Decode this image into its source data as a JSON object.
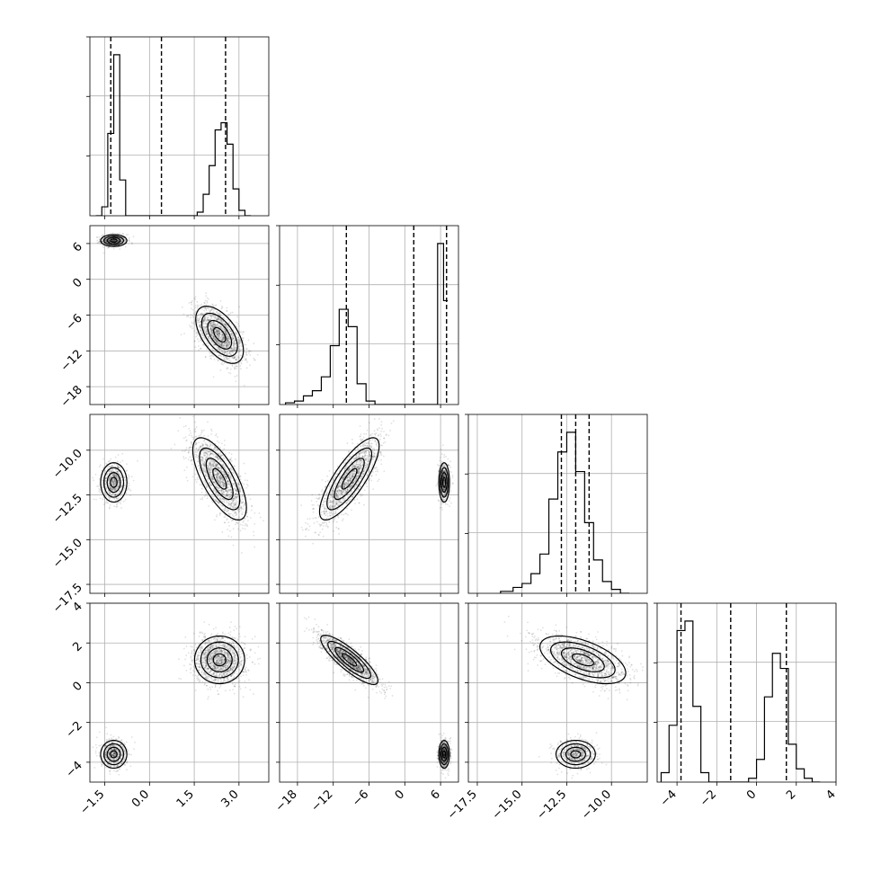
{
  "chart_data": {
    "type": "corner",
    "grid": true,
    "parameters": [
      {
        "index": 0,
        "ticks": [
          -1.5,
          0.0,
          1.5,
          3.0
        ],
        "tick_labels": [
          "−1.5",
          "0.0",
          "1.5",
          "3.0"
        ],
        "range": [
          -2.0,
          4.0
        ]
      },
      {
        "index": 1,
        "ticks": [
          -18,
          -12,
          -6,
          0,
          6
        ],
        "tick_labels": [
          "−18",
          "−12",
          "−6",
          "0",
          "6"
        ],
        "range": [
          -21,
          9
        ]
      },
      {
        "index": 2,
        "ticks": [
          -17.5,
          -15.0,
          -12.5,
          -10.0
        ],
        "tick_labels": [
          "−17.5",
          "−15.0",
          "−12.5",
          "−10.0"
        ],
        "range": [
          -18.0,
          -8.0
        ]
      },
      {
        "index": 3,
        "ticks": [
          -4,
          -2,
          0,
          2,
          4
        ],
        "tick_labels": [
          "−4",
          "−2",
          "0",
          "2",
          "4"
        ],
        "range": [
          -5.0,
          4.0
        ]
      }
    ],
    "diagonal": [
      {
        "param": 0,
        "bin_edges": [
          -1.8,
          -1.6,
          -1.4,
          -1.2,
          -1.0,
          -0.8,
          -0.6,
          0.0,
          0.6,
          0.8,
          1.0,
          1.2,
          1.4,
          1.6,
          1.8,
          2.0,
          2.2,
          2.4,
          2.6,
          2.8,
          3.0,
          3.2,
          3.4
        ],
        "counts": [
          0,
          0.05,
          0.46,
          0.9,
          0.2,
          0.0,
          0.0,
          0.0,
          0.0,
          0.0,
          0.0,
          0.0,
          0.0,
          0.02,
          0.12,
          0.28,
          0.48,
          0.52,
          0.4,
          0.15,
          0.03,
          0.0
        ],
        "quantiles": [
          -1.3,
          0.4,
          2.55
        ]
      },
      {
        "param": 1,
        "bin_edges": [
          -20.0,
          -18.5,
          -17.0,
          -15.5,
          -14.0,
          -12.5,
          -11.0,
          -9.5,
          -8.0,
          -6.5,
          -5.0,
          -3.5,
          -2.0,
          5.5,
          6.5,
          7.2
        ],
        "counts": [
          0.01,
          0.02,
          0.05,
          0.08,
          0.16,
          0.34,
          0.55,
          0.45,
          0.12,
          0.02,
          0.0,
          0.0,
          0.0,
          0.93,
          0.6
        ],
        "quantiles": [
          -9.8,
          1.5,
          7.0
        ]
      },
      {
        "param": 2,
        "bin_edges": [
          -16.2,
          -15.5,
          -15.0,
          -14.5,
          -14.0,
          -13.5,
          -13.0,
          -12.5,
          -12.0,
          -11.5,
          -11.0,
          -10.5,
          -10.0,
          -9.5,
          -9.0
        ],
        "counts": [
          0.01,
          0.03,
          0.05,
          0.1,
          0.2,
          0.48,
          0.72,
          0.82,
          0.62,
          0.36,
          0.17,
          0.06,
          0.02,
          0.0
        ],
        "quantiles": [
          -12.8,
          -12.0,
          -11.25
        ]
      },
      {
        "param": 3,
        "bin_edges": [
          -4.8,
          -4.4,
          -4.0,
          -3.6,
          -3.2,
          -2.8,
          -2.4,
          -2.0,
          -1.6,
          -1.2,
          -0.8,
          -0.4,
          0.0,
          0.4,
          0.8,
          1.2,
          1.6,
          2.0,
          2.4,
          2.8,
          3.2
        ],
        "counts": [
          0.05,
          0.3,
          0.8,
          0.85,
          0.4,
          0.05,
          0.0,
          0.0,
          0.0,
          0.0,
          0.0,
          0.02,
          0.12,
          0.45,
          0.68,
          0.6,
          0.2,
          0.07,
          0.02,
          0.0
        ],
        "quantiles": [
          -3.8,
          -1.3,
          1.5
        ]
      }
    ],
    "pairs": [
      {
        "x_param": 0,
        "y_param": 1,
        "clusters": [
          {
            "x": -1.2,
            "y": 6.5,
            "sx": 0.22,
            "sy": 0.5,
            "rho": 0.0,
            "n": 550
          },
          {
            "x": 2.35,
            "y": -9.3,
            "sx": 0.4,
            "sy": 2.4,
            "rho": -0.55,
            "n": 1500
          }
        ]
      },
      {
        "x_param": 0,
        "y_param": 2,
        "clusters": [
          {
            "x": -1.2,
            "y": -11.8,
            "sx": 0.22,
            "sy": 0.55,
            "rho": 0.0,
            "n": 650
          },
          {
            "x": 2.35,
            "y": -11.6,
            "sx": 0.45,
            "sy": 1.15,
            "rho": -0.7,
            "n": 1500
          }
        ]
      },
      {
        "x_param": 1,
        "y_param": 2,
        "clusters": [
          {
            "x": -9.3,
            "y": -11.6,
            "sx": 2.5,
            "sy": 1.15,
            "rho": 0.8,
            "n": 1500
          },
          {
            "x": 6.6,
            "y": -11.8,
            "sx": 0.45,
            "sy": 0.55,
            "rho": 0.0,
            "n": 650
          }
        ]
      },
      {
        "x_param": 0,
        "y_param": 3,
        "clusters": [
          {
            "x": 2.35,
            "y": 1.15,
            "sx": 0.42,
            "sy": 0.6,
            "rho": 0.0,
            "n": 1500
          },
          {
            "x": -1.2,
            "y": -3.6,
            "sx": 0.22,
            "sy": 0.35,
            "rho": 0.0,
            "n": 650
          }
        ]
      },
      {
        "x_param": 1,
        "y_param": 3,
        "clusters": [
          {
            "x": -9.3,
            "y": 1.15,
            "sx": 2.4,
            "sy": 0.62,
            "rho": -0.85,
            "n": 1500
          },
          {
            "x": 6.6,
            "y": -3.6,
            "sx": 0.45,
            "sy": 0.35,
            "rho": 0.0,
            "n": 650
          }
        ]
      },
      {
        "x_param": 2,
        "y_param": 3,
        "clusters": [
          {
            "x": -11.6,
            "y": 1.15,
            "sx": 1.2,
            "sy": 0.6,
            "rho": -0.55,
            "n": 1500
          },
          {
            "x": -12.0,
            "y": -3.6,
            "sx": 0.55,
            "sy": 0.35,
            "rho": 0.0,
            "n": 650
          }
        ]
      }
    ]
  }
}
